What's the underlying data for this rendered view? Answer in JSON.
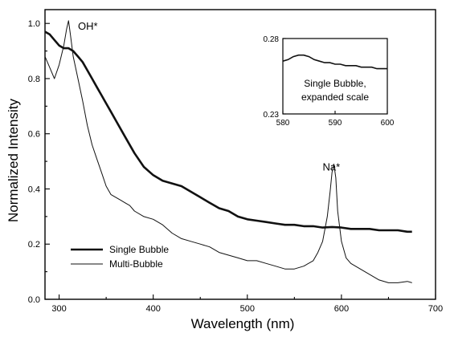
{
  "chart_data": {
    "type": "line",
    "xlabel": "Wavelength (nm)",
    "ylabel": "Normalized Intensity",
    "xlim": [
      285,
      700
    ],
    "ylim": [
      0.0,
      1.05
    ],
    "xticks": [
      300,
      400,
      500,
      600,
      700
    ],
    "yticks": [
      0.0,
      0.2,
      0.4,
      0.6,
      0.8,
      1.0
    ],
    "grid": false,
    "legend_position": "bottom-left",
    "series": [
      {
        "name": "Single Bubble",
        "style": "thick",
        "x": [
          285,
          290,
          295,
          300,
          305,
          310,
          315,
          320,
          325,
          330,
          335,
          340,
          345,
          350,
          355,
          360,
          370,
          380,
          390,
          400,
          410,
          420,
          430,
          440,
          450,
          460,
          470,
          480,
          490,
          500,
          510,
          520,
          530,
          540,
          550,
          560,
          570,
          580,
          590,
          600,
          610,
          620,
          630,
          640,
          650,
          660,
          670,
          675
        ],
        "values": [
          0.97,
          0.96,
          0.94,
          0.92,
          0.91,
          0.91,
          0.9,
          0.88,
          0.86,
          0.83,
          0.8,
          0.77,
          0.74,
          0.71,
          0.68,
          0.65,
          0.59,
          0.53,
          0.48,
          0.45,
          0.43,
          0.42,
          0.41,
          0.39,
          0.37,
          0.35,
          0.33,
          0.32,
          0.3,
          0.29,
          0.285,
          0.28,
          0.275,
          0.27,
          0.27,
          0.265,
          0.265,
          0.26,
          0.262,
          0.26,
          0.255,
          0.255,
          0.255,
          0.25,
          0.25,
          0.25,
          0.245,
          0.245
        ]
      },
      {
        "name": "Multi-Bubble",
        "style": "thin",
        "x": [
          285,
          290,
          295,
          300,
          305,
          308,
          310,
          312,
          315,
          320,
          325,
          330,
          335,
          340,
          345,
          350,
          355,
          360,
          365,
          370,
          375,
          380,
          390,
          400,
          410,
          420,
          430,
          440,
          450,
          460,
          470,
          480,
          490,
          500,
          510,
          520,
          530,
          540,
          550,
          560,
          570,
          575,
          580,
          585,
          588,
          590,
          592,
          594,
          596,
          600,
          605,
          610,
          620,
          630,
          640,
          650,
          660,
          670,
          675
        ],
        "values": [
          0.88,
          0.84,
          0.8,
          0.85,
          0.92,
          0.98,
          1.01,
          0.96,
          0.88,
          0.8,
          0.72,
          0.63,
          0.56,
          0.51,
          0.46,
          0.41,
          0.38,
          0.37,
          0.36,
          0.35,
          0.34,
          0.32,
          0.3,
          0.29,
          0.27,
          0.24,
          0.22,
          0.21,
          0.2,
          0.19,
          0.17,
          0.16,
          0.15,
          0.14,
          0.14,
          0.13,
          0.12,
          0.11,
          0.11,
          0.12,
          0.14,
          0.17,
          0.21,
          0.3,
          0.39,
          0.46,
          0.49,
          0.44,
          0.32,
          0.21,
          0.15,
          0.13,
          0.11,
          0.09,
          0.07,
          0.06,
          0.06,
          0.065,
          0.06
        ]
      }
    ],
    "annotations": [
      {
        "text": "OH*",
        "x": 320,
        "y": 1.0
      },
      {
        "text": "Na*",
        "x": 580,
        "y": 0.49
      }
    ],
    "inset": {
      "xlim": [
        580,
        600
      ],
      "ylim": [
        0.23,
        0.28
      ],
      "xticks": [
        580,
        590,
        600
      ],
      "yticks": [
        0.23,
        0.28
      ],
      "caption_line1": "Single Bubble,",
      "caption_line2": "expanded scale",
      "series": {
        "x": [
          580,
          581,
          582,
          583,
          584,
          585,
          586,
          587,
          588,
          589,
          590,
          591,
          592,
          593,
          594,
          595,
          596,
          597,
          598,
          599,
          600
        ],
        "values": [
          0.265,
          0.266,
          0.268,
          0.269,
          0.269,
          0.268,
          0.266,
          0.265,
          0.264,
          0.264,
          0.263,
          0.263,
          0.262,
          0.262,
          0.262,
          0.261,
          0.261,
          0.261,
          0.26,
          0.26,
          0.26
        ]
      }
    }
  }
}
